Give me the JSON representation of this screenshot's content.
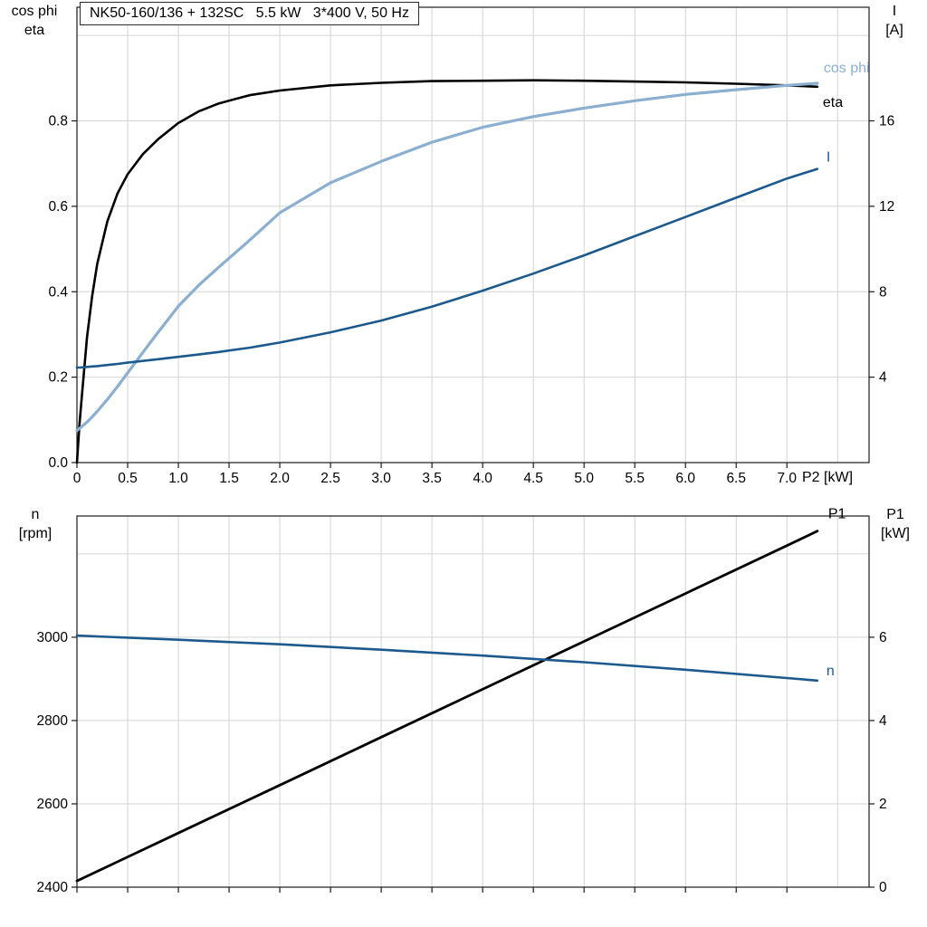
{
  "title": "NK50-160/136 + 132SC   5.5 kW   3*400 V, 50 Hz",
  "colors": {
    "grid": "#d4d4d4",
    "frame": "#1a1a1a",
    "axis_text": "#000000",
    "light_blue": "#8aafd0",
    "dark_blue": "#1c5a8d",
    "black": "#000000"
  },
  "chart_data": [
    {
      "type": "line",
      "title": "NK50-160/136 + 132SC   5.5 kW   3*400 V, 50 Hz",
      "x_axis": {
        "label": "P2 [kW]",
        "range": [
          0,
          7.81
        ],
        "tick_values": [
          0,
          0.5,
          1,
          1.5,
          2,
          2.5,
          3,
          3.5,
          4,
          4.5,
          5,
          5.5,
          6,
          6.5,
          7
        ],
        "tick_labels": [
          "0",
          "0.5",
          "1.0",
          "1.5",
          "2.0",
          "2.5",
          "3.0",
          "3.5",
          "4.0",
          "4.5",
          "5.0",
          "5.5",
          "6.0",
          "6.5",
          "7.0"
        ],
        "grid": [
          0.5,
          1,
          1.5,
          2,
          2.5,
          3,
          3.5,
          4,
          4.5,
          5,
          5.5,
          6,
          6.5,
          7,
          7.5
        ]
      },
      "left_axis": {
        "label_line1": "cos phi",
        "label_line2": "eta",
        "range": [
          0,
          1.066
        ],
        "tick_values": [
          0,
          0.2,
          0.4,
          0.6,
          0.8
        ],
        "tick_labels": [
          "0.0",
          "0.2",
          "0.4",
          "0.6",
          "0.8"
        ],
        "grid": [
          0.2,
          0.4,
          0.6,
          0.8,
          1.0
        ]
      },
      "right_axis": {
        "label_line1": "I",
        "label_line2": "[A]",
        "range": [
          0,
          21.32
        ],
        "tick_values": [
          4,
          8,
          12,
          16
        ],
        "tick_labels": [
          "4",
          "8",
          "12",
          "16"
        ]
      },
      "series": [
        {
          "id": "eta",
          "name": "eta",
          "axis": "left",
          "color": "#000000",
          "width": 2.6,
          "label_dx": 6,
          "label_dy": 22,
          "x": [
            0,
            0.025,
            0.05,
            0.1,
            0.15,
            0.2,
            0.3,
            0.4,
            0.5,
            0.65,
            0.8,
            1,
            1.2,
            1.4,
            1.7,
            2,
            2.5,
            3,
            3.5,
            4,
            4.5,
            5,
            5.5,
            6,
            6.5,
            7,
            7.3
          ],
          "y": [
            0,
            0.09,
            0.16,
            0.295,
            0.39,
            0.465,
            0.565,
            0.63,
            0.675,
            0.722,
            0.757,
            0.795,
            0.822,
            0.841,
            0.86,
            0.871,
            0.883,
            0.889,
            0.893,
            0.894,
            0.895,
            0.894,
            0.892,
            0.89,
            0.887,
            0.883,
            0.88
          ]
        },
        {
          "id": "cos-phi",
          "name": "cos phi",
          "axis": "left",
          "color": "#8aafd0",
          "width": 3.2,
          "label_dx": 7,
          "label_dy": -12,
          "x": [
            0,
            0.025,
            0.05,
            0.1,
            0.15,
            0.2,
            0.3,
            0.4,
            0.5,
            0.65,
            0.8,
            1,
            1.2,
            1.4,
            1.7,
            2,
            2.5,
            3,
            3.5,
            4,
            4.5,
            5,
            5.5,
            6,
            6.5,
            7,
            7.3
          ],
          "y": [
            0.075,
            0.08,
            0.085,
            0.095,
            0.107,
            0.12,
            0.148,
            0.178,
            0.21,
            0.258,
            0.305,
            0.366,
            0.415,
            0.458,
            0.52,
            0.585,
            0.655,
            0.705,
            0.75,
            0.785,
            0.81,
            0.83,
            0.847,
            0.862,
            0.873,
            0.883,
            0.888
          ]
        },
        {
          "id": "current",
          "name": "I",
          "axis": "right",
          "color": "#1c5a8d",
          "width": 2.6,
          "label_dx": 10,
          "label_dy": -8,
          "x": [
            0,
            0.025,
            0.05,
            0.1,
            0.15,
            0.2,
            0.3,
            0.4,
            0.5,
            0.65,
            0.8,
            1,
            1.2,
            1.4,
            1.7,
            2,
            2.5,
            3,
            3.5,
            4,
            4.5,
            5,
            5.5,
            6,
            6.5,
            7,
            7.3
          ],
          "y": [
            4.45,
            4.45,
            4.46,
            4.48,
            4.5,
            4.52,
            4.57,
            4.62,
            4.68,
            4.76,
            4.84,
            4.95,
            5.06,
            5.18,
            5.38,
            5.62,
            6.1,
            6.65,
            7.3,
            8.05,
            8.85,
            9.7,
            10.6,
            11.5,
            12.4,
            13.3,
            13.75
          ]
        }
      ]
    },
    {
      "type": "line",
      "title": "",
      "x_axis": {
        "label": "",
        "range": [
          0,
          7.81
        ],
        "tick_values": [
          0,
          0.5,
          1,
          1.5,
          2,
          2.5,
          3,
          3.5,
          4,
          4.5,
          5,
          5.5,
          6,
          6.5,
          7
        ],
        "tick_labels": [],
        "grid": [
          0.5,
          1,
          1.5,
          2,
          2.5,
          3,
          3.5,
          4,
          4.5,
          5,
          5.5,
          6,
          6.5,
          7,
          7.5
        ]
      },
      "left_axis": {
        "label_line1": "n",
        "label_line2": "[rpm]",
        "range": [
          2400,
          3291
        ],
        "tick_values": [
          2400,
          2600,
          2800,
          3000
        ],
        "tick_labels": [
          "2400",
          "2600",
          "2800",
          "3000"
        ],
        "grid": [
          2600,
          2800,
          3000,
          3200
        ]
      },
      "right_axis": {
        "label_line1": "P1",
        "label_line2": "[kW]",
        "range": [
          0,
          8.91
        ],
        "tick_values": [
          0,
          2,
          4,
          6
        ],
        "tick_labels": [
          "0",
          "2",
          "4",
          "6"
        ]
      },
      "series": [
        {
          "id": "p1",
          "name": "P1",
          "axis": "right",
          "color": "#000000",
          "width": 2.8,
          "label_dx": 12,
          "label_dy": -14,
          "x": [
            0,
            1,
            2,
            3,
            4,
            5,
            6,
            7,
            7.3
          ],
          "y": [
            0.15,
            1.3,
            2.45,
            3.6,
            4.75,
            5.9,
            7.05,
            8.2,
            8.55
          ]
        },
        {
          "id": "speed",
          "name": "n",
          "axis": "left",
          "color": "#1c5a8d",
          "width": 2.6,
          "label_dx": 10,
          "label_dy": -6,
          "x": [
            0,
            1,
            2,
            3,
            4,
            5,
            6,
            7,
            7.3
          ],
          "y": [
            3004,
            2994,
            2983,
            2970,
            2956,
            2940,
            2922,
            2902,
            2896
          ]
        }
      ]
    }
  ]
}
